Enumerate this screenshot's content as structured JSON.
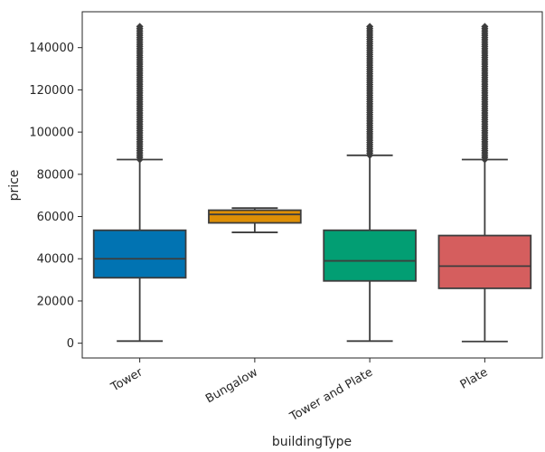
{
  "chart_data": {
    "type": "box",
    "xlabel": "buildingType",
    "ylabel": "price",
    "ylim": [
      -7000,
      157000
    ],
    "yticks": [
      0,
      20000,
      40000,
      60000,
      80000,
      100000,
      120000,
      140000
    ],
    "ytick_labels": [
      "0",
      "20000",
      "40000",
      "60000",
      "80000",
      "100000",
      "120000",
      "140000"
    ],
    "grid": false,
    "categories": [
      "Tower",
      "Bungalow",
      "Tower and Plate",
      "Plate"
    ],
    "colors": [
      "#0173b2",
      "#de8f05",
      "#029e73",
      "#d55e5e"
    ],
    "boxes": [
      {
        "category": "Tower",
        "whisker_low": 1000,
        "q1": 31000,
        "median": 40000,
        "q3": 53500,
        "whisker_high": 87000,
        "outliers_from": 87000,
        "outliers_to": 150000
      },
      {
        "category": "Bungalow",
        "whisker_low": 52500,
        "q1": 57000,
        "median": 61000,
        "q3": 63000,
        "whisker_high": 64000,
        "outliers_from": null,
        "outliers_to": null
      },
      {
        "category": "Tower and Plate",
        "whisker_low": 1000,
        "q1": 29500,
        "median": 39000,
        "q3": 53500,
        "whisker_high": 89000,
        "outliers_from": 89000,
        "outliers_to": 150000
      },
      {
        "category": "Plate",
        "whisker_low": 800,
        "q1": 26000,
        "median": 36500,
        "q3": 51000,
        "whisker_high": 87000,
        "outliers_from": 87000,
        "outliers_to": 150000
      }
    ]
  }
}
